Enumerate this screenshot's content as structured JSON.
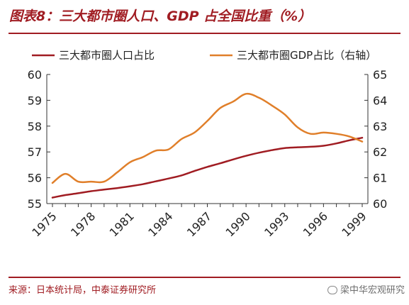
{
  "header": {
    "title": "图表8：三大都市圈人口、GDP 占全国比重（%）"
  },
  "footer": {
    "source": "来源：日本统计局，中泰证券研究所",
    "watermark": "梁中华宏观研究"
  },
  "chart_data": {
    "type": "line",
    "title": "",
    "xlabel": "",
    "ylabel_left": "",
    "ylabel_right": "",
    "x": [
      1975,
      1976,
      1977,
      1978,
      1979,
      1980,
      1981,
      1982,
      1983,
      1984,
      1985,
      1986,
      1987,
      1988,
      1989,
      1990,
      1991,
      1992,
      1993,
      1994,
      1995,
      1996,
      1997,
      1998,
      1999
    ],
    "ylim_left": [
      55,
      60
    ],
    "ylim_right": [
      60,
      65
    ],
    "yticks_left": [
      55,
      56,
      57,
      58,
      59,
      60
    ],
    "yticks_right": [
      60,
      61,
      62,
      63,
      64,
      65
    ],
    "xticks": [
      1975,
      1978,
      1981,
      1984,
      1987,
      1990,
      1993,
      1996,
      1999
    ],
    "legend_position": "top",
    "grid": false,
    "series": [
      {
        "name": "三大都市圈人口占比",
        "axis": "left",
        "color": "#a01c22",
        "values": [
          55.23,
          55.33,
          55.4,
          55.48,
          55.54,
          55.6,
          55.67,
          55.75,
          55.86,
          55.97,
          56.09,
          56.26,
          56.42,
          56.56,
          56.71,
          56.85,
          56.97,
          57.07,
          57.15,
          57.18,
          57.2,
          57.24,
          57.33,
          57.45,
          57.55
        ]
      },
      {
        "name": "三大都市圈GDP占比（右轴）",
        "axis": "right",
        "color": "#e07f2a",
        "values": [
          60.8,
          61.15,
          60.85,
          60.85,
          60.85,
          61.2,
          61.6,
          61.8,
          62.05,
          62.1,
          62.5,
          62.75,
          63.2,
          63.7,
          63.95,
          64.25,
          64.1,
          63.8,
          63.45,
          62.95,
          62.7,
          62.75,
          62.7,
          62.6,
          62.4
        ]
      }
    ]
  }
}
